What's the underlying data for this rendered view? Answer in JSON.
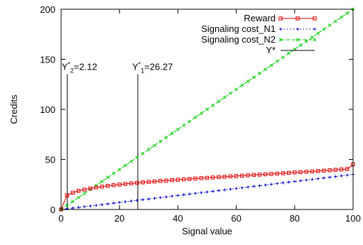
{
  "chart_data": {
    "type": "line",
    "title": "",
    "xlabel": "Signal value",
    "ylabel": "Credits",
    "xlim": [
      0,
      100
    ],
    "ylim": [
      0,
      200
    ],
    "xticks": [
      0,
      20,
      40,
      60,
      80,
      100
    ],
    "yticks": [
      0,
      50,
      100,
      150,
      200
    ],
    "grid": false,
    "legend_position": "top-right",
    "series": [
      {
        "name": "Reward",
        "color": "#e00000",
        "marker": "square",
        "x": [
          0,
          2,
          4,
          6,
          8,
          10,
          12,
          14,
          16,
          18,
          20,
          22,
          24,
          26,
          28,
          30,
          32,
          34,
          36,
          38,
          40,
          42,
          44,
          46,
          48,
          50,
          52,
          54,
          56,
          58,
          60,
          62,
          64,
          66,
          68,
          70,
          72,
          74,
          76,
          78,
          80,
          82,
          84,
          86,
          88,
          90,
          92,
          94,
          96,
          98,
          100
        ],
        "y": [
          0,
          14.1,
          16.8,
          18.6,
          19.9,
          21.0,
          22.0,
          22.8,
          23.6,
          24.3,
          24.9,
          25.5,
          26.1,
          26.6,
          27.1,
          27.6,
          28.0,
          28.5,
          28.9,
          29.3,
          29.7,
          30.1,
          30.5,
          30.9,
          31.3,
          31.6,
          32.0,
          32.4,
          32.7,
          33.1,
          33.4,
          33.8,
          34.1,
          34.5,
          34.8,
          35.2,
          35.5,
          35.9,
          36.2,
          36.6,
          37.0,
          37.3,
          37.7,
          38.0,
          38.4,
          38.8,
          39.2,
          39.6,
          40.0,
          40.4,
          45.0
        ]
      },
      {
        "name": "Signaling cost_N1",
        "color": "#0000cc",
        "marker": "plus",
        "linestyle": "dotted",
        "x_start": 0,
        "x_end": 100,
        "x_step": 2,
        "slope": 0.35
      },
      {
        "name": "Signaling cost_N2",
        "color": "#00cc00",
        "marker": "cross",
        "linestyle": "dashed",
        "x_start": 0,
        "x_end": 100,
        "x_step": 2,
        "slope": 2.0
      },
      {
        "name": "Y*",
        "color": "#000000",
        "linestyle": "solid"
      }
    ],
    "vlines": [
      {
        "x": 2.12,
        "label_main": "Y*",
        "label_sub": "2",
        "label_value": "=2.12"
      },
      {
        "x": 26.27,
        "label_main": "Y*",
        "label_sub": "1",
        "label_value": "=26.27"
      }
    ]
  }
}
